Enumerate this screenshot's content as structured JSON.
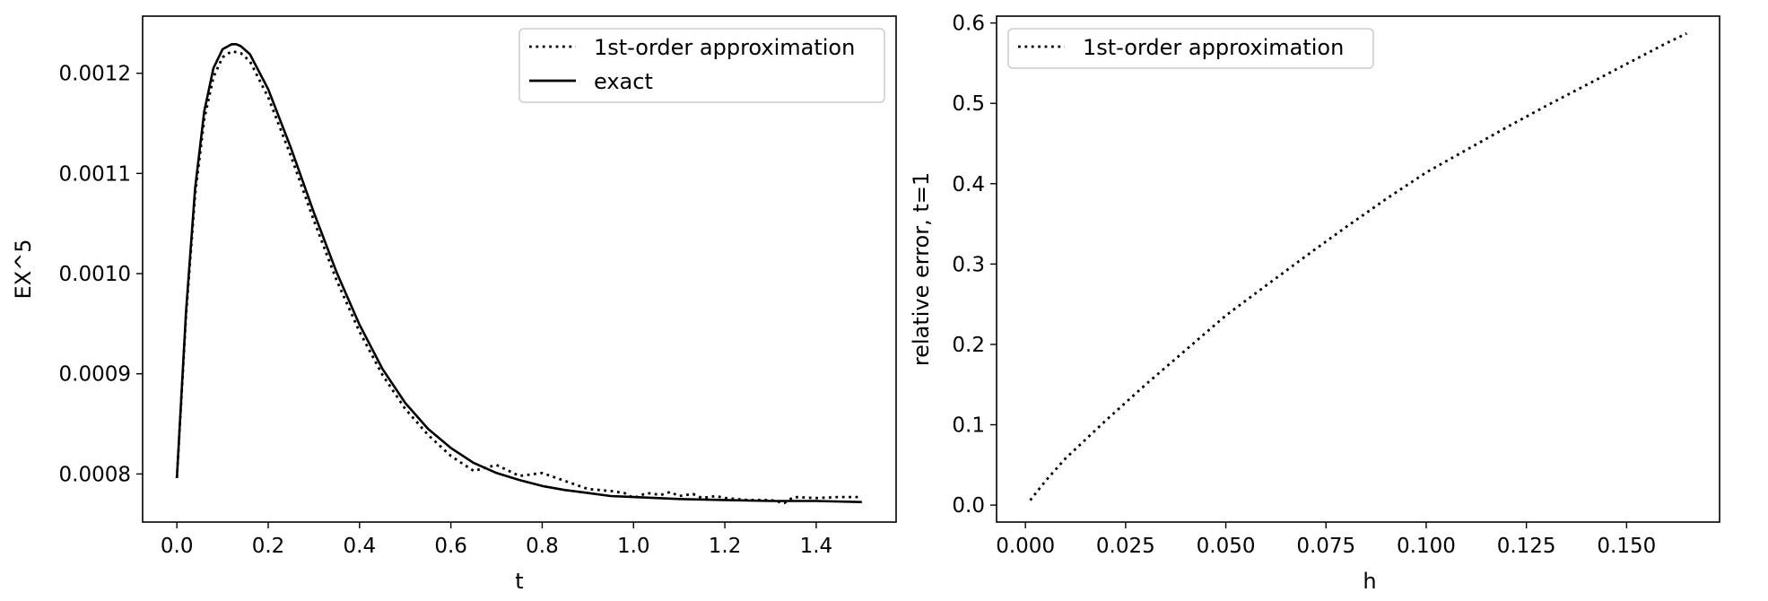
{
  "chart_data": [
    {
      "type": "line",
      "title": "",
      "xlabel": "t",
      "ylabel": "EX^5",
      "xlim": [
        -0.075,
        1.575
      ],
      "ylim": [
        0.000752,
        0.001257
      ],
      "xticks": [
        0.0,
        0.2,
        0.4,
        0.6,
        0.8,
        1.0,
        1.2,
        1.4
      ],
      "xtick_labels": [
        "0.0",
        "0.2",
        "0.4",
        "0.6",
        "0.8",
        "1.0",
        "1.2",
        "1.4"
      ],
      "yticks": [
        0.0008,
        0.0009,
        0.001,
        0.0011,
        0.0012
      ],
      "ytick_labels": [
        "0.0008",
        "0.0009",
        "0.0010",
        "0.0011",
        "0.0012"
      ],
      "grid": false,
      "legend": "upper right",
      "series": [
        {
          "name": "1st-order approximation",
          "style": "dotted",
          "color": "#000000",
          "x": [
            0.0,
            0.02,
            0.04,
            0.06,
            0.08,
            0.1,
            0.12,
            0.14,
            0.16,
            0.2,
            0.25,
            0.3,
            0.35,
            0.4,
            0.45,
            0.5,
            0.55,
            0.6,
            0.65,
            0.7,
            0.75,
            0.8,
            0.85,
            0.9,
            0.95,
            0.98,
            1.0,
            1.03,
            1.06,
            1.08,
            1.1,
            1.13,
            1.15,
            1.18,
            1.2,
            1.25,
            1.3,
            1.33,
            1.35,
            1.4,
            1.45,
            1.5
          ],
          "y": [
            0.000796,
            0.000958,
            0.001079,
            0.001154,
            0.001196,
            0.001216,
            0.001222,
            0.00122,
            0.001212,
            0.001176,
            0.001117,
            0.001053,
            0.000993,
            0.000942,
            0.000899,
            0.000865,
            0.000839,
            0.000818,
            0.000803,
            0.000809,
            0.000798,
            0.000801,
            0.000793,
            0.000785,
            0.000783,
            0.000781,
            0.000776,
            0.000781,
            0.000779,
            0.000782,
            0.000778,
            0.00078,
            0.000776,
            0.000778,
            0.000776,
            0.000774,
            0.000774,
            0.000771,
            0.000777,
            0.000776,
            0.000777,
            0.000777
          ]
        },
        {
          "name": "exact",
          "style": "solid",
          "color": "#000000",
          "x": [
            0.0,
            0.02,
            0.04,
            0.06,
            0.08,
            0.1,
            0.12,
            0.13,
            0.14,
            0.16,
            0.2,
            0.25,
            0.3,
            0.35,
            0.4,
            0.45,
            0.5,
            0.55,
            0.6,
            0.65,
            0.7,
            0.75,
            0.8,
            0.85,
            0.9,
            0.95,
            1.0,
            1.1,
            1.2,
            1.3,
            1.4,
            1.5
          ],
          "y": [
            0.000796,
            0.000962,
            0.001085,
            0.001162,
            0.001205,
            0.001224,
            0.001229,
            0.001229,
            0.001227,
            0.001219,
            0.001184,
            0.001125,
            0.001061,
            0.001001,
            0.000949,
            0.000905,
            0.000871,
            0.000845,
            0.000826,
            0.000811,
            0.000801,
            0.000794,
            0.000788,
            0.000784,
            0.000781,
            0.000778,
            0.000777,
            0.000775,
            0.000774,
            0.000773,
            0.000773,
            0.000772
          ]
        }
      ]
    },
    {
      "type": "line",
      "title": "",
      "xlabel": "h",
      "ylabel": "relative error, t=1",
      "xlim": [
        -0.0072,
        0.1732
      ],
      "ylim": [
        -0.0211,
        0.6085
      ],
      "xticks": [
        0.0,
        0.025,
        0.05,
        0.075,
        0.1,
        0.125,
        0.15
      ],
      "xtick_labels": [
        "0.000",
        "0.025",
        "0.050",
        "0.075",
        "0.100",
        "0.125",
        "0.150"
      ],
      "yticks": [
        0.0,
        0.1,
        0.2,
        0.3,
        0.4,
        0.5,
        0.6
      ],
      "ytick_labels": [
        "0.0",
        "0.1",
        "0.2",
        "0.3",
        "0.4",
        "0.5",
        "0.6"
      ],
      "grid": false,
      "legend": "upper left",
      "series": [
        {
          "name": "1st-order approximation",
          "style": "dotted",
          "color": "#000000",
          "x": [
            0.0012,
            0.005,
            0.01,
            0.02,
            0.03,
            0.04,
            0.05,
            0.06,
            0.07,
            0.08,
            0.09,
            0.1,
            0.11,
            0.12,
            0.13,
            0.14,
            0.15,
            0.16,
            0.165
          ],
          "y": [
            0.006,
            0.03,
            0.058,
            0.105,
            0.15,
            0.193,
            0.236,
            0.273,
            0.31,
            0.346,
            0.381,
            0.414,
            0.442,
            0.47,
            0.497,
            0.523,
            0.549,
            0.575,
            0.587
          ]
        }
      ]
    }
  ]
}
